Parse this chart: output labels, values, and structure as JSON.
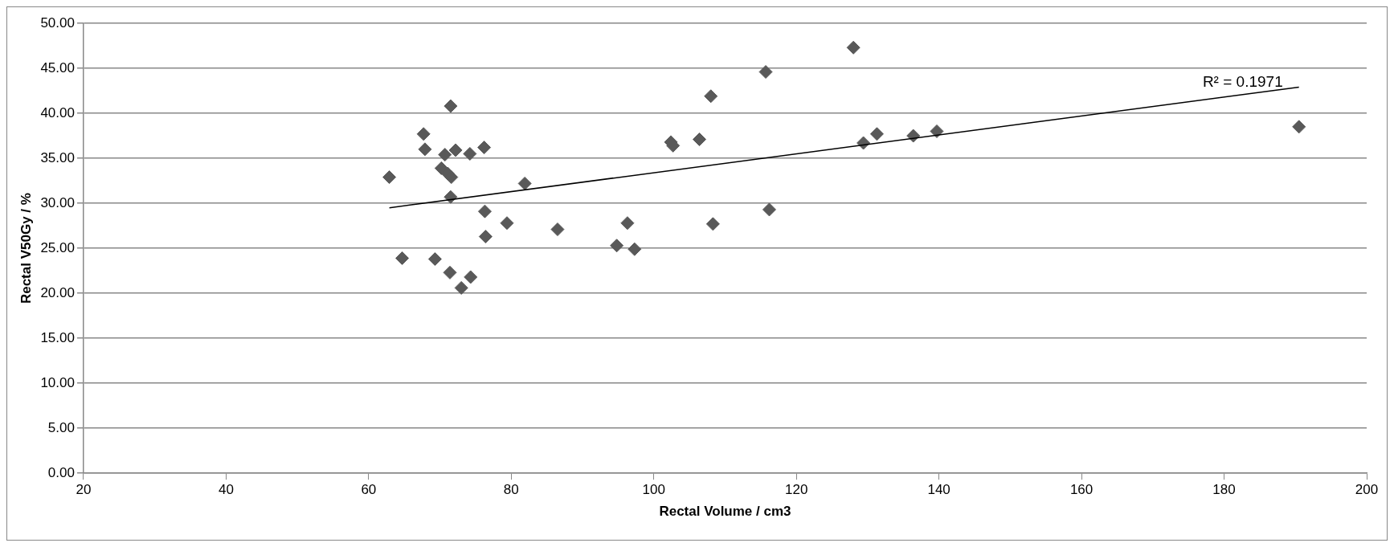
{
  "chart_data": {
    "type": "scatter",
    "xlabel": "Rectal Volume / cm3",
    "ylabel": "Rectal V50Gy / %",
    "xlim": [
      20,
      200
    ],
    "xticks": [
      20,
      40,
      60,
      80,
      100,
      120,
      140,
      160,
      180,
      200
    ],
    "ylim": [
      0,
      50
    ],
    "yticks": [
      {
        "value": 0,
        "label": "0.00"
      },
      {
        "value": 5,
        "label": "5.00"
      },
      {
        "value": 10,
        "label": "10.00"
      },
      {
        "value": 15,
        "label": "15.00"
      },
      {
        "value": 20,
        "label": "20.00"
      },
      {
        "value": 25,
        "label": "25.00"
      },
      {
        "value": 30,
        "label": "30.00"
      },
      {
        "value": 35,
        "label": "35.00"
      },
      {
        "value": 40,
        "label": "40.00"
      },
      {
        "value": 45,
        "label": "45.00"
      },
      {
        "value": 50,
        "label": "50.00"
      }
    ],
    "grid": "y",
    "legend": false,
    "marker": "diamond",
    "series": [
      {
        "type": "scatter",
        "color": "#595959",
        "x": [
          62.9,
          64.7,
          67.7,
          67.9,
          69.3,
          70.2,
          70.7,
          71.1,
          71.4,
          71.5,
          71.5,
          71.6,
          72.2,
          73.0,
          74.2,
          74.3,
          76.2,
          76.3,
          76.4,
          79.4,
          81.9,
          86.5,
          94.8,
          96.3,
          97.3,
          102.4,
          102.7,
          106.4,
          108.0,
          108.3,
          115.7,
          116.2,
          128.0,
          129.4,
          131.3,
          136.4,
          139.7,
          190.5
        ],
        "values": [
          32.9,
          23.9,
          37.7,
          36.0,
          23.8,
          33.9,
          35.4,
          33.3,
          22.3,
          40.8,
          30.7,
          32.9,
          35.9,
          20.6,
          35.5,
          21.8,
          36.2,
          29.1,
          26.3,
          27.8,
          32.2,
          27.1,
          25.3,
          27.8,
          24.9,
          36.8,
          36.4,
          37.1,
          41.9,
          27.7,
          44.6,
          29.3,
          47.3,
          36.7,
          37.7,
          37.5,
          38.0,
          38.5
        ]
      },
      {
        "type": "line",
        "color": "#000000",
        "marker": "none",
        "x": [
          62.9,
          190.5
        ],
        "values": [
          29.5,
          42.9
        ]
      }
    ],
    "annotations": [
      "R² = 0.1971"
    ]
  }
}
